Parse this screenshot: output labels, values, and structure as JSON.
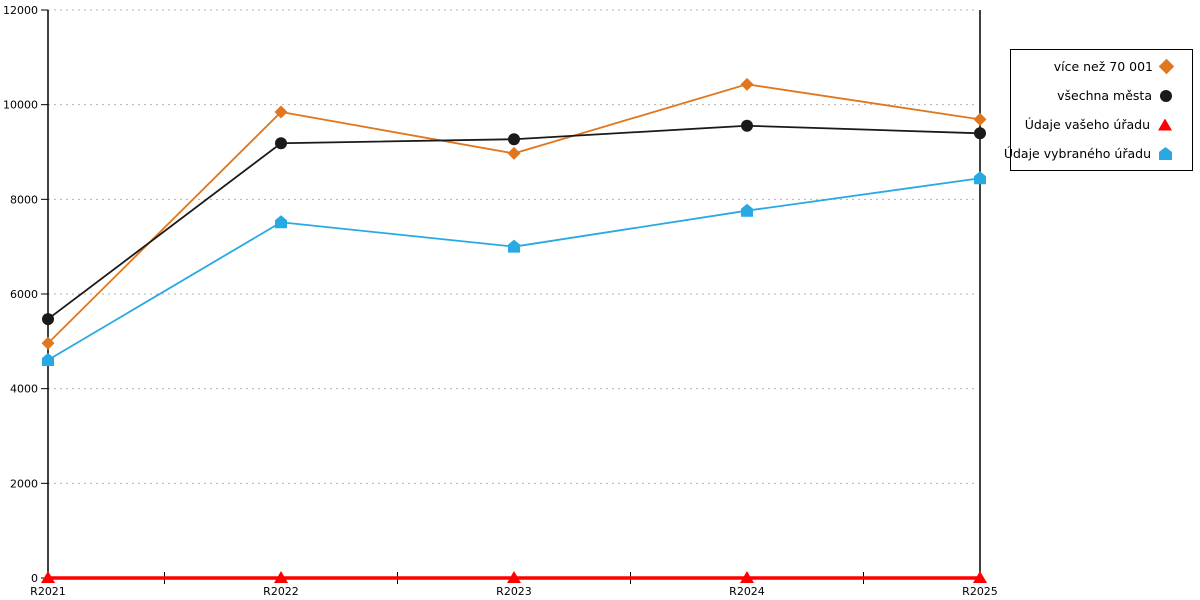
{
  "chart_data": {
    "type": "line",
    "title": "",
    "xlabel": "",
    "ylabel": "",
    "categories": [
      "R2021",
      "R2022",
      "R2023",
      "R2024",
      "R2025"
    ],
    "series": [
      {
        "name": "více než 70 001",
        "color": "#e0771e",
        "marker": "diamond",
        "values": [
          4960,
          9845,
          8970,
          10430,
          9690
        ]
      },
      {
        "name": "všechna města",
        "color": "#1a1a1a",
        "marker": "circle",
        "values": [
          5470,
          9185,
          9270,
          9555,
          9395
        ]
      },
      {
        "name": "Údaje vašeho úřadu",
        "color": "#ff0000",
        "marker": "triangle",
        "values": [
          0,
          0,
          0,
          0,
          0
        ]
      },
      {
        "name": "Údaje vybraného úřadu",
        "color": "#28a9e2",
        "marker": "pentagon",
        "values": [
          4605,
          7515,
          7000,
          7760,
          8445
        ]
      }
    ],
    "ylim": [
      0,
      12000
    ],
    "yticks": [
      0,
      2000,
      4000,
      6000,
      8000,
      10000,
      12000
    ],
    "grid": "horizontal-dotted",
    "grid_color": "#b3b3b3",
    "axis_color": "#000000",
    "legend_position": "top-right"
  }
}
